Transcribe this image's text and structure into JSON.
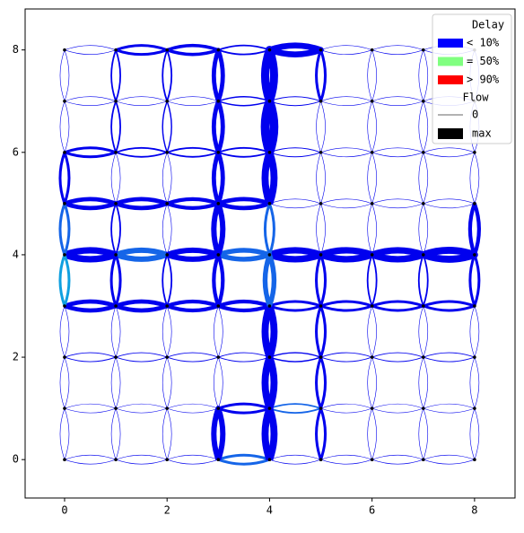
{
  "chart_data": {
    "type": "network",
    "xlim": [
      -0.77,
      8.79
    ],
    "ylim": [
      -0.75,
      8.8
    ],
    "xticks": [
      0,
      2,
      4,
      6,
      8
    ],
    "yticks": [
      0,
      2,
      4,
      6,
      8
    ],
    "palette": [
      "#0000ee",
      "#1565e8",
      "#10a0e0"
    ],
    "horizontal": {
      "flow": [
        [
          0.05,
          0.05,
          0.05,
          0.25,
          0.05,
          0.05,
          0.05,
          0.05
        ],
        [
          0.05,
          0.05,
          0.05,
          0.25,
          0.15,
          0.05,
          0.05,
          0.05
        ],
        [
          0.08,
          0.08,
          0.08,
          0.08,
          0.12,
          0.08,
          0.08,
          0.08
        ],
        [
          0.4,
          0.4,
          0.35,
          0.35,
          0.25,
          0.25,
          0.25,
          0.25
        ],
        [
          0.6,
          0.5,
          0.5,
          0.45,
          0.6,
          0.6,
          0.6,
          0.65
        ],
        [
          0.4,
          0.4,
          0.35,
          0.4,
          0.05,
          0.05,
          0.05,
          0.05
        ],
        [
          0.25,
          0.15,
          0.15,
          0.15,
          0.08,
          0.05,
          0.05,
          0.05
        ],
        [
          0.05,
          0.05,
          0.05,
          0.12,
          0.08,
          0.05,
          0.05,
          0.05
        ],
        [
          0.05,
          0.25,
          0.3,
          0.15,
          0.55,
          0.05,
          0.05,
          0.05
        ]
      ],
      "color": [
        [
          0,
          0,
          0,
          1,
          0,
          0,
          0,
          0
        ],
        [
          0,
          0,
          0,
          0,
          1,
          0,
          0,
          0
        ],
        [
          0,
          0,
          0,
          0,
          0,
          0,
          0,
          0
        ],
        [
          0,
          0,
          0,
          0,
          0,
          0,
          0,
          0
        ],
        [
          0,
          1,
          0,
          1,
          0,
          0,
          0,
          0
        ],
        [
          0,
          0,
          0,
          0,
          0,
          0,
          0,
          0
        ],
        [
          0,
          0,
          0,
          0,
          0,
          0,
          0,
          0
        ],
        [
          0,
          0,
          0,
          0,
          0,
          0,
          0,
          0
        ],
        [
          0,
          0,
          0,
          0,
          0,
          0,
          0,
          0
        ]
      ]
    },
    "vertical": {
      "flow": [
        [
          0.05,
          0.05,
          0.05,
          0.25,
          0.25,
          0.25,
          0.05,
          0.05
        ],
        [
          0.05,
          0.05,
          0.05,
          0.25,
          0.15,
          0.05,
          0.15,
          0.15
        ],
        [
          0.05,
          0.05,
          0.05,
          0.15,
          0.05,
          0.05,
          0.12,
          0.15
        ],
        [
          0.5,
          0.05,
          0.05,
          0.35,
          0.5,
          0.4,
          0.4,
          0.4
        ],
        [
          0.65,
          0.65,
          0.65,
          0.45,
          0.25,
          0.65,
          0.8,
          0.75
        ],
        [
          0.25,
          0.25,
          0.25,
          0.25,
          0.05,
          0.05,
          0.05,
          0.25
        ],
        [
          0.05,
          0.05,
          0.05,
          0.15,
          0.05,
          0.05,
          0.05,
          0.05
        ],
        [
          0.05,
          0.05,
          0.05,
          0.15,
          0.05,
          0.05,
          0.05,
          0.05
        ],
        [
          0.05,
          0.05,
          0.05,
          0.25,
          0.35,
          0.05,
          0.05,
          0.05
        ]
      ],
      "color": [
        [
          0,
          0,
          0,
          2,
          1,
          0,
          0,
          0
        ],
        [
          0,
          0,
          0,
          0,
          0,
          0,
          0,
          0
        ],
        [
          0,
          0,
          0,
          0,
          0,
          0,
          0,
          0
        ],
        [
          0,
          0,
          0,
          0,
          0,
          0,
          0,
          0
        ],
        [
          0,
          0,
          0,
          1,
          1,
          0,
          0,
          0
        ],
        [
          0,
          0,
          0,
          0,
          0,
          0,
          0,
          0
        ],
        [
          0,
          0,
          0,
          0,
          0,
          0,
          0,
          0
        ],
        [
          0,
          0,
          0,
          0,
          0,
          0,
          0,
          0
        ],
        [
          0,
          0,
          0,
          0,
          0,
          0,
          0,
          0
        ]
      ]
    },
    "legend": {
      "position": "upper right",
      "delay": {
        "title": "Delay",
        "entries": [
          {
            "label": "< 10%",
            "color": "#0000ff"
          },
          {
            "label": "= 50%",
            "color": "#80ff80"
          },
          {
            "label": "> 90%",
            "color": "#ff0000"
          }
        ]
      },
      "flow": {
        "title": "Flow",
        "entries": [
          {
            "label": "0",
            "value": 0
          },
          {
            "label": "max",
            "value": 1
          }
        ]
      }
    }
  }
}
